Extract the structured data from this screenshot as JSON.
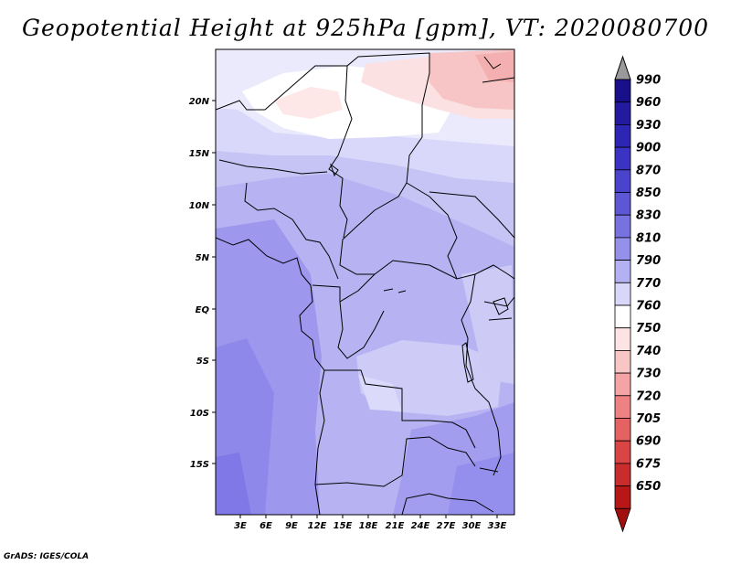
{
  "title": "Geopotential Height at 925hPa [gpm], VT: 2020080700",
  "credit": "GrADS: IGES/COLA",
  "map": {
    "latitude_labels": [
      "20N",
      "15N",
      "10N",
      "5N",
      "EQ",
      "5S",
      "10S",
      "15S"
    ],
    "longitude_labels": [
      "3E",
      "6E",
      "9E",
      "12E",
      "15E",
      "18E",
      "21E",
      "24E",
      "27E",
      "30E",
      "33E"
    ]
  },
  "colorbar": {
    "labels": [
      "990",
      "960",
      "930",
      "900",
      "870",
      "850",
      "830",
      "810",
      "790",
      "770",
      "760",
      "750",
      "740",
      "730",
      "720",
      "705",
      "690",
      "675",
      "650"
    ],
    "colors": [
      "#1a0f8a",
      "#231aa0",
      "#2d25b4",
      "#3a33c4",
      "#4a44cc",
      "#5d57d6",
      "#7872e0",
      "#9590ea",
      "#b4b1f2",
      "#d8d7fa",
      "#ffffff",
      "#fde3e3",
      "#f9c6c6",
      "#f4a4a4",
      "#ee8282",
      "#e56262",
      "#d94444",
      "#c92c2c",
      "#b81717",
      "#a10e0e"
    ],
    "top_arrow_color": "#9a9a9a"
  }
}
